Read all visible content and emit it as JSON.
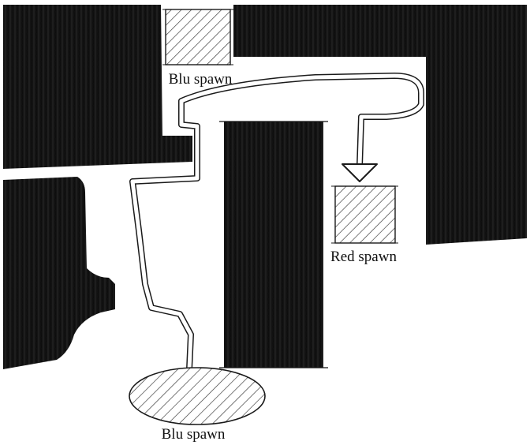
{
  "labels": {
    "blu_spawn_top": "Blu spawn",
    "red_spawn": "Red spawn",
    "blu_spawn_bottom": "Blu spawn"
  },
  "colors": {
    "paper": "#ffffff",
    "ink": "#141414",
    "path_outline": "#1a1a1a"
  }
}
